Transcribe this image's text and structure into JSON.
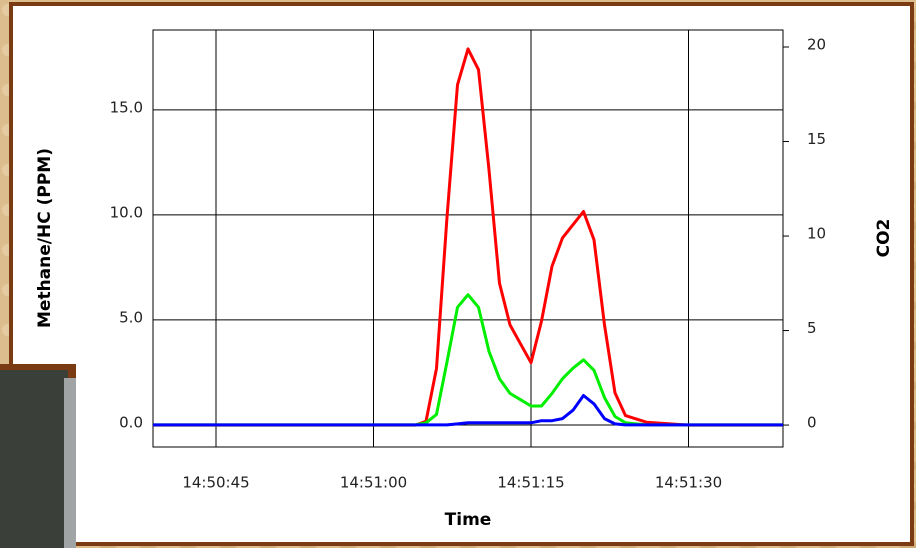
{
  "chart_data": {
    "type": "line",
    "x_label": "Time",
    "y_label": "Methane/HC (PPM)",
    "y2_label": "CO2",
    "x": [
      "14:50:39",
      "14:50:45",
      "14:50:50",
      "14:50:55",
      "14:51:00",
      "14:51:04",
      "14:51:05",
      "14:51:06",
      "14:51:07",
      "14:51:08",
      "14:51:09",
      "14:51:10",
      "14:51:11",
      "14:51:12",
      "14:51:13",
      "14:51:14",
      "14:51:15",
      "14:51:16",
      "14:51:17",
      "14:51:18",
      "14:51:19",
      "14:51:20",
      "14:51:21",
      "14:51:22",
      "14:51:23",
      "14:51:24",
      "14:51:26",
      "14:51:30",
      "14:51:35",
      "14:51:39"
    ],
    "series": [
      {
        "color": "#ff0000",
        "axis": "y2",
        "values": [
          0,
          0,
          0,
          0,
          0,
          0,
          0.2,
          3.0,
          11,
          18,
          19.9,
          18.8,
          13.5,
          7.5,
          5.3,
          4.3,
          3.3,
          5.5,
          8.4,
          9.9,
          10.6,
          11.3,
          9.8,
          5.3,
          1.7,
          0.5,
          0.15,
          0,
          0,
          0
        ]
      },
      {
        "color": "#00ee00",
        "values": [
          0,
          0,
          0,
          0,
          0,
          0,
          0.1,
          0.5,
          3,
          5.6,
          6.2,
          5.6,
          3.5,
          2.2,
          1.5,
          1.2,
          0.9,
          0.9,
          1.5,
          2.2,
          2.7,
          3.1,
          2.6,
          1.3,
          0.4,
          0.1,
          0,
          0,
          0,
          0
        ]
      },
      {
        "color": "#0000ff",
        "values": [
          0,
          0,
          0,
          0,
          0,
          0,
          0,
          0,
          0,
          0.05,
          0.1,
          0.1,
          0.1,
          0.1,
          0.1,
          0.1,
          0.1,
          0.2,
          0.2,
          0.3,
          0.7,
          1.4,
          1.0,
          0.3,
          0.05,
          0,
          0,
          0,
          0,
          0
        ]
      }
    ],
    "xlim": [
      "14:50:39",
      "14:51:39"
    ],
    "xticks": [
      "14:50:45",
      "14:51:00",
      "14:51:15",
      "14:51:30"
    ],
    "ylim": [
      -1.05,
      18.8
    ],
    "yticks": [
      {
        "value": 0,
        "label": "0.0"
      },
      {
        "value": 5,
        "label": "5.0"
      },
      {
        "value": 10,
        "label": "10.0"
      },
      {
        "value": 15,
        "label": "15.0"
      }
    ],
    "y2lim": [
      -1.16,
      20.9
    ],
    "y2ticks": [
      0,
      5,
      10,
      15,
      20
    ],
    "grid": true
  }
}
